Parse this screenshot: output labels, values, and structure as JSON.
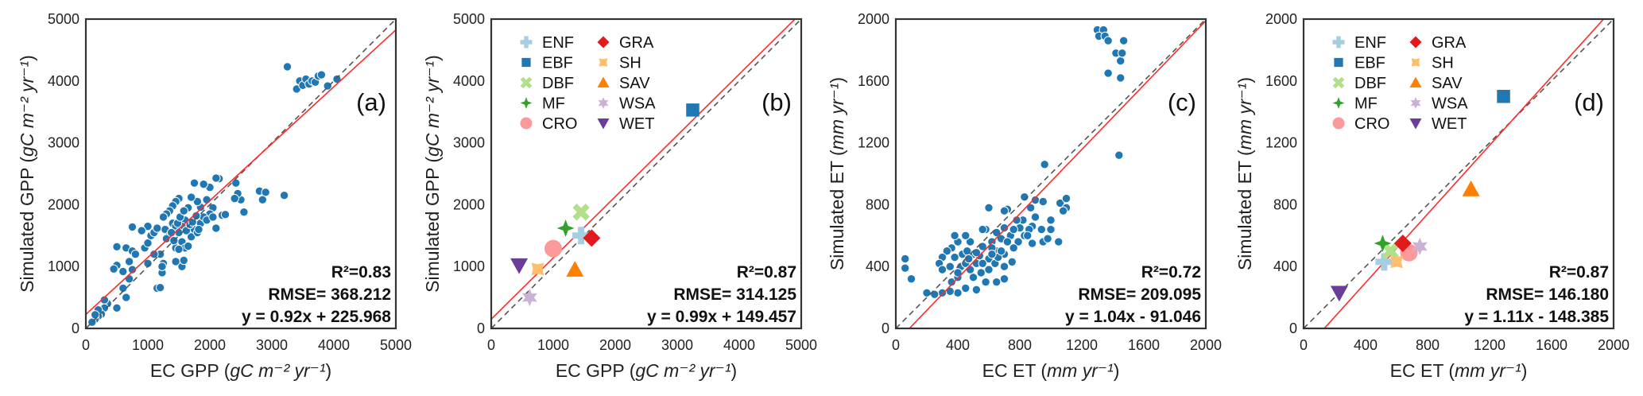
{
  "chart_data": [
    {
      "type": "scatter",
      "panel_label": "(a)",
      "xlabel": {
        "prefix": "EC GPP (",
        "units": "gC m⁻² yr⁻¹",
        "suffix": ")"
      },
      "ylabel": {
        "prefix": "Simulated GPP (",
        "units": "gC m⁻² yr⁻¹",
        "suffix": ")"
      },
      "xlim": [
        0,
        5000
      ],
      "ylim": [
        0,
        5000
      ],
      "xticks": [
        "0",
        "1000",
        "2000",
        "3000",
        "4000",
        "5000"
      ],
      "yticks": [
        "0",
        "1000",
        "2000",
        "3000",
        "4000",
        "5000"
      ],
      "tick_values": [
        0,
        1000,
        2000,
        3000,
        4000,
        5000
      ],
      "stats": {
        "r2": "R²=0.83",
        "rmse": "RMSE= 368.212",
        "equation": "y = 0.92x + 225.968"
      },
      "fit": {
        "slope": 0.92,
        "intercept": 225.968
      },
      "point_color": "#1f77b4",
      "points": [
        [
          3250,
          4230
        ],
        [
          3400,
          3870
        ],
        [
          3450,
          4000
        ],
        [
          3500,
          3930
        ],
        [
          3550,
          4030
        ],
        [
          3600,
          3950
        ],
        [
          3650,
          4000
        ],
        [
          3700,
          3980
        ],
        [
          3750,
          4080
        ],
        [
          3800,
          4100
        ],
        [
          3900,
          3920
        ],
        [
          4050,
          4030
        ],
        [
          2800,
          2220
        ],
        [
          2900,
          2200
        ],
        [
          2850,
          2080
        ],
        [
          3200,
          2150
        ],
        [
          2550,
          1880
        ],
        [
          2500,
          2080
        ],
        [
          2450,
          2180
        ],
        [
          2400,
          2100
        ],
        [
          2420,
          2350
        ],
        [
          2200,
          1830
        ],
        [
          2150,
          2420
        ],
        [
          2100,
          2430
        ],
        [
          2000,
          2280
        ],
        [
          1900,
          2330
        ],
        [
          1750,
          2350
        ],
        [
          2100,
          1620
        ],
        [
          2050,
          1950
        ],
        [
          2000,
          1850
        ],
        [
          1950,
          2080
        ],
        [
          1850,
          1960
        ],
        [
          1800,
          2050
        ],
        [
          1700,
          2120
        ],
        [
          1650,
          1950
        ],
        [
          1600,
          1750
        ],
        [
          1550,
          1650
        ],
        [
          1500,
          2100
        ],
        [
          1450,
          2050
        ],
        [
          1400,
          1980
        ],
        [
          1350,
          1900
        ],
        [
          1300,
          1850
        ],
        [
          1250,
          1800
        ],
        [
          1280,
          1600
        ],
        [
          1350,
          1500
        ],
        [
          1400,
          1700
        ],
        [
          1450,
          1650
        ],
        [
          1500,
          1550
        ],
        [
          1550,
          1400
        ],
        [
          1600,
          1300
        ],
        [
          1650,
          1330
        ],
        [
          1700,
          1480
        ],
        [
          1750,
          1600
        ],
        [
          1800,
          1550
        ],
        [
          1850,
          1700
        ],
        [
          1900,
          1800
        ],
        [
          1950,
          1750
        ],
        [
          2050,
          1800
        ],
        [
          1450,
          1300
        ],
        [
          1500,
          1280
        ],
        [
          1300,
          1450
        ],
        [
          1200,
          1200
        ],
        [
          1250,
          1050
        ],
        [
          1230,
          900
        ],
        [
          1230,
          1000
        ],
        [
          1150,
          650
        ],
        [
          1200,
          660
        ],
        [
          1000,
          1050
        ],
        [
          950,
          1300
        ],
        [
          1000,
          1380
        ],
        [
          1050,
          1500
        ],
        [
          1000,
          1650
        ],
        [
          900,
          1580
        ],
        [
          750,
          1640
        ],
        [
          650,
          1300
        ],
        [
          750,
          1250
        ],
        [
          800,
          1200
        ],
        [
          700,
          1080
        ],
        [
          750,
          950
        ],
        [
          600,
          920
        ],
        [
          500,
          1320
        ],
        [
          500,
          1020
        ],
        [
          450,
          960
        ],
        [
          700,
          800
        ],
        [
          600,
          650
        ],
        [
          650,
          500
        ],
        [
          500,
          330
        ],
        [
          350,
          400
        ],
        [
          300,
          460
        ],
        [
          300,
          330
        ],
        [
          250,
          230
        ],
        [
          200,
          200
        ],
        [
          150,
          150
        ],
        [
          100,
          100
        ],
        [
          200,
          300
        ],
        [
          150,
          220
        ],
        [
          1550,
          1000
        ],
        [
          1580,
          1100
        ],
        [
          1450,
          1080
        ],
        [
          1100,
          1550
        ],
        [
          1150,
          1620
        ],
        [
          1100,
          1200
        ],
        [
          1380,
          1550
        ],
        [
          1420,
          1420
        ],
        [
          1480,
          1700
        ],
        [
          1520,
          1800
        ],
        [
          1580,
          1900
        ],
        [
          1620,
          1580
        ],
        [
          1680,
          1680
        ],
        [
          1720,
          1720
        ],
        [
          1780,
          1820
        ],
        [
          1820,
          1600
        ],
        [
          2250,
          1840
        ]
      ]
    },
    {
      "type": "scatter",
      "panel_label": "(b)",
      "xlabel": {
        "prefix": "EC GPP (",
        "units": "gC m⁻² yr⁻¹",
        "suffix": ")"
      },
      "ylabel": {
        "prefix": "Simulated GPP (",
        "units": "gC m⁻² yr⁻¹",
        "suffix": ")"
      },
      "xlim": [
        0,
        5000
      ],
      "ylim": [
        0,
        5000
      ],
      "xticks": [
        "0",
        "1000",
        "2000",
        "3000",
        "4000",
        "5000"
      ],
      "yticks": [
        "0",
        "1000",
        "2000",
        "3000",
        "4000",
        "5000"
      ],
      "tick_values": [
        0,
        1000,
        2000,
        3000,
        4000,
        5000
      ],
      "stats": {
        "r2": "R²=0.87",
        "rmse": "RMSE= 314.125",
        "equation": "y = 0.99x + 149.457"
      },
      "fit": {
        "slope": 0.99,
        "intercept": 149.457
      },
      "legend_location": "top-left",
      "groups": [
        {
          "name": "ENF",
          "marker": "plus",
          "color": "#a6cee3",
          "x": 1450,
          "y": 1500
        },
        {
          "name": "EBF",
          "marker": "square",
          "color": "#1f78b4",
          "x": 3250,
          "y": 3530
        },
        {
          "name": "DBF",
          "marker": "x",
          "color": "#b2df8a",
          "x": 1450,
          "y": 1880
        },
        {
          "name": "MF",
          "marker": "star4",
          "color": "#33a02c",
          "x": 1200,
          "y": 1620
        },
        {
          "name": "CRO",
          "marker": "circle",
          "color": "#fb9a99",
          "x": 1000,
          "y": 1290
        },
        {
          "name": "GRA",
          "marker": "diamond",
          "color": "#e31a1c",
          "x": 1620,
          "y": 1460
        },
        {
          "name": "SH",
          "marker": "star4x",
          "color": "#fdbf6f",
          "x": 750,
          "y": 960
        },
        {
          "name": "SAV",
          "marker": "triangle-up",
          "color": "#ff7f00",
          "x": 1350,
          "y": 950
        },
        {
          "name": "WSA",
          "marker": "star6",
          "color": "#cab2d6",
          "x": 620,
          "y": 500
        },
        {
          "name": "WET",
          "marker": "triangle-down",
          "color": "#6a3d9a",
          "x": 450,
          "y": 1020
        }
      ]
    },
    {
      "type": "scatter",
      "panel_label": "(c)",
      "xlabel": {
        "prefix": "EC ET (",
        "units": "mm yr⁻¹",
        "suffix": ")"
      },
      "ylabel": {
        "prefix": "Simulated ET (",
        "units": "mm yr⁻¹",
        "suffix": ")"
      },
      "xlim": [
        0,
        2000
      ],
      "ylim": [
        0,
        2000
      ],
      "xticks": [
        "0",
        "400",
        "800",
        "1200",
        "1600",
        "2000"
      ],
      "yticks": [
        "0",
        "400",
        "800",
        "1200",
        "1600",
        "2000"
      ],
      "tick_values": [
        0,
        400,
        800,
        1200,
        1600,
        2000
      ],
      "stats": {
        "r2": "R²=0.72",
        "rmse": "RMSE= 209.095",
        "equation": "y = 1.04x - 91.046"
      },
      "fit": {
        "slope": 1.04,
        "intercept": -91.046
      },
      "point_color": "#1f77b4",
      "points": [
        [
          1300,
          1930
        ],
        [
          1340,
          1930
        ],
        [
          1310,
          1890
        ],
        [
          1350,
          1890
        ],
        [
          1370,
          1860
        ],
        [
          1470,
          1860
        ],
        [
          1420,
          1780
        ],
        [
          1450,
          1730
        ],
        [
          1460,
          1780
        ],
        [
          1370,
          1650
        ],
        [
          1450,
          1620
        ],
        [
          1440,
          1120
        ],
        [
          960,
          1060
        ],
        [
          830,
          850
        ],
        [
          900,
          830
        ],
        [
          950,
          820
        ],
        [
          1060,
          810
        ],
        [
          1100,
          840
        ],
        [
          1100,
          780
        ],
        [
          1080,
          760
        ],
        [
          1000,
          700
        ],
        [
          870,
          780
        ],
        [
          720,
          770
        ],
        [
          600,
          780
        ],
        [
          580,
          640
        ],
        [
          650,
          620
        ],
        [
          700,
          650
        ],
        [
          900,
          720
        ],
        [
          880,
          660
        ],
        [
          800,
          650
        ],
        [
          790,
          560
        ],
        [
          950,
          560
        ],
        [
          980,
          580
        ],
        [
          880,
          550
        ],
        [
          830,
          600
        ],
        [
          760,
          520
        ],
        [
          740,
          600
        ],
        [
          700,
          480
        ],
        [
          650,
          500
        ],
        [
          620,
          560
        ],
        [
          600,
          450
        ],
        [
          560,
          530
        ],
        [
          500,
          480
        ],
        [
          480,
          560
        ],
        [
          450,
          600
        ],
        [
          400,
          560
        ],
        [
          380,
          600
        ],
        [
          360,
          520
        ],
        [
          330,
          500
        ],
        [
          300,
          460
        ],
        [
          280,
          420
        ],
        [
          300,
          380
        ],
        [
          350,
          400
        ],
        [
          360,
          300
        ],
        [
          400,
          330
        ],
        [
          420,
          400
        ],
        [
          450,
          420
        ],
        [
          480,
          380
        ],
        [
          500,
          330
        ],
        [
          520,
          420
        ],
        [
          550,
          360
        ],
        [
          580,
          300
        ],
        [
          600,
          380
        ],
        [
          640,
          420
        ],
        [
          660,
          460
        ],
        [
          700,
          400
        ],
        [
          750,
          430
        ],
        [
          700,
          320
        ],
        [
          650,
          300
        ],
        [
          520,
          250
        ],
        [
          450,
          260
        ],
        [
          400,
          230
        ],
        [
          350,
          240
        ],
        [
          300,
          230
        ],
        [
          250,
          220
        ],
        [
          200,
          230
        ],
        [
          100,
          320
        ],
        [
          60,
          450
        ],
        [
          60,
          390
        ],
        [
          380,
          460
        ],
        [
          430,
          480
        ],
        [
          460,
          500
        ],
        [
          540,
          470
        ],
        [
          620,
          520
        ],
        [
          680,
          580
        ],
        [
          720,
          560
        ],
        [
          820,
          700
        ],
        [
          860,
          640
        ],
        [
          940,
          640
        ],
        [
          1000,
          640
        ],
        [
          1050,
          560
        ],
        [
          400,
          360
        ],
        [
          470,
          450
        ],
        [
          520,
          490
        ],
        [
          560,
          420
        ],
        [
          620,
          480
        ],
        [
          680,
          500
        ],
        [
          760,
          640
        ],
        [
          780,
          700
        ],
        [
          850,
          600
        ],
        [
          560,
          640
        ],
        [
          700,
          760
        ]
      ]
    },
    {
      "type": "scatter",
      "panel_label": "(d)",
      "xlabel": {
        "prefix": "EC ET (",
        "units": "mm yr⁻¹",
        "suffix": ")"
      },
      "ylabel": {
        "prefix": "Simulated ET (",
        "units": "mm yr⁻¹",
        "suffix": ")"
      },
      "xlim": [
        0,
        2000
      ],
      "ylim": [
        0,
        2000
      ],
      "xticks": [
        "0",
        "400",
        "800",
        "1200",
        "1600",
        "2000"
      ],
      "yticks": [
        "0",
        "400",
        "800",
        "1200",
        "1600",
        "2000"
      ],
      "tick_values": [
        0,
        400,
        800,
        1200,
        1600,
        2000
      ],
      "stats": {
        "r2": "R²=0.87",
        "rmse": "RMSE= 146.180",
        "equation": "y = 1.11x - 148.385"
      },
      "fit": {
        "slope": 1.11,
        "intercept": -148.385
      },
      "legend_location": "top-left",
      "groups": [
        {
          "name": "ENF",
          "marker": "plus",
          "color": "#a6cee3",
          "x": 520,
          "y": 430
        },
        {
          "name": "EBF",
          "marker": "square",
          "color": "#1f78b4",
          "x": 1290,
          "y": 1500
        },
        {
          "name": "DBF",
          "marker": "x",
          "color": "#b2df8a",
          "x": 560,
          "y": 500
        },
        {
          "name": "MF",
          "marker": "star4",
          "color": "#33a02c",
          "x": 510,
          "y": 550
        },
        {
          "name": "CRO",
          "marker": "circle",
          "color": "#fb9a99",
          "x": 680,
          "y": 490
        },
        {
          "name": "GRA",
          "marker": "diamond",
          "color": "#e31a1c",
          "x": 640,
          "y": 550
        },
        {
          "name": "SH",
          "marker": "star4x",
          "color": "#fdbf6f",
          "x": 600,
          "y": 430
        },
        {
          "name": "SAV",
          "marker": "triangle-up",
          "color": "#ff7f00",
          "x": 1080,
          "y": 900
        },
        {
          "name": "WSA",
          "marker": "star6",
          "color": "#cab2d6",
          "x": 750,
          "y": 530
        },
        {
          "name": "WET",
          "marker": "triangle-down",
          "color": "#6a3d9a",
          "x": 230,
          "y": 230
        }
      ]
    }
  ]
}
